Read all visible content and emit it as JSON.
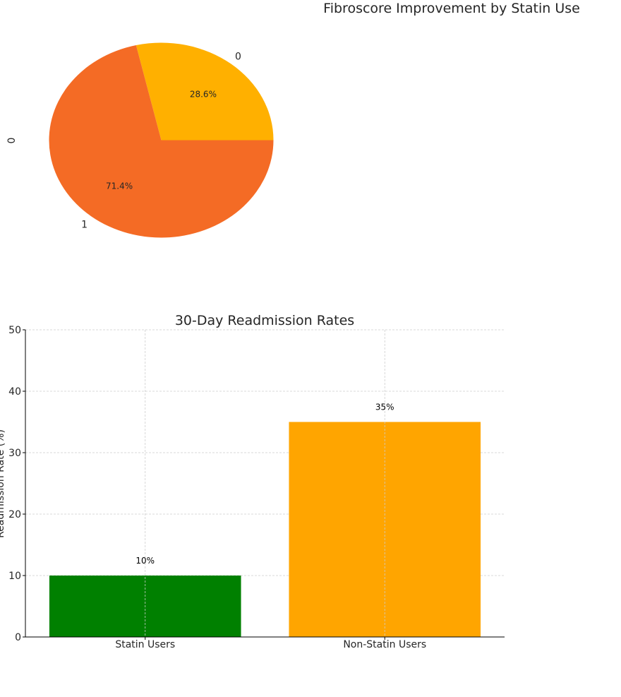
{
  "chart_data": [
    {
      "type": "pie",
      "title": "Fibroscore Improvement by Statin Use",
      "ylabel": "0",
      "categories": [
        "0",
        "1"
      ],
      "values": [
        28.6,
        71.4
      ],
      "value_labels": [
        "28.6%",
        "71.4%"
      ],
      "colors": [
        "#FFB000",
        "#F46B25"
      ],
      "legend": "none"
    },
    {
      "type": "bar",
      "title": "30-Day Readmission Rates",
      "xlabel": "",
      "ylabel": "Readmission Rate (%)",
      "categories": [
        "Statin Users",
        "Non-Statin Users"
      ],
      "values": [
        10,
        35
      ],
      "value_labels": [
        "10%",
        "35%"
      ],
      "colors": [
        "#008000",
        "#FFA500"
      ],
      "ylim": [
        0,
        50
      ],
      "yticks": [
        "0",
        "10",
        "20",
        "30",
        "40",
        "50"
      ],
      "grid": true,
      "grid_style": "dashed",
      "legend": "none"
    }
  ]
}
